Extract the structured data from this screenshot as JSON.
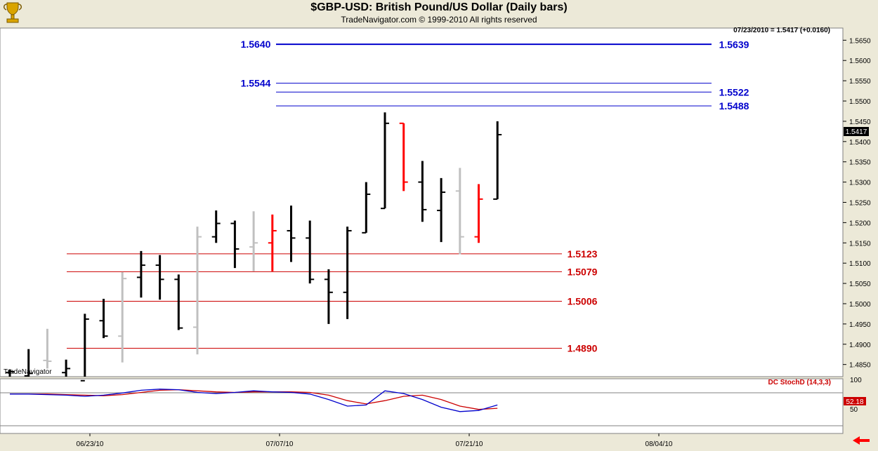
{
  "header": {
    "title": "$GBP-USD:  British Pound/US Dollar  (Daily bars)",
    "subtitle": "TradeNavigator.com © 1999-2010 All rights reserved"
  },
  "price_readout": "07/23/2010 = 1.5417 (+0.0160)",
  "last_price_label": "1.5417",
  "watermark": "TradeNavigator",
  "indicator": {
    "label": "DC StochD (14,3,3)",
    "value_label": "52.18",
    "ticks": [
      "100",
      "50"
    ]
  },
  "colors": {
    "up_bar": "#000000",
    "neutral_bar": "#c0c0c0",
    "down_bar": "#ff0000",
    "resistance": "#0000cc",
    "support": "#cc0000",
    "stoch_k": "#0000cc",
    "stoch_d": "#cc0000",
    "plot_bg": "#ffffff",
    "frame_bg": "#ece9d8",
    "arrow": "#ff0000"
  },
  "chart_data": {
    "type": "ohlc",
    "ylim": [
      1.482,
      1.568
    ],
    "y_ticks": [
      "1.4850",
      "1.4900",
      "1.4950",
      "1.5000",
      "1.5050",
      "1.5100",
      "1.5150",
      "1.5200",
      "1.5250",
      "1.5300",
      "1.5350",
      "1.5400",
      "1.5450",
      "1.5500",
      "1.5550",
      "1.5600",
      "1.5650"
    ],
    "x_ticks": [
      "06/23/10",
      "07/07/10",
      "07/21/10",
      "08/04/10"
    ],
    "bars": [
      {
        "o": 1.483,
        "h": 1.4838,
        "l": 1.482,
        "c": 1.4832,
        "color": "up"
      },
      {
        "o": 1.4822,
        "h": 1.4888,
        "l": 1.481,
        "c": 1.4828,
        "color": "up"
      },
      {
        "o": 1.486,
        "h": 1.4938,
        "l": 1.484,
        "c": 1.4858,
        "color": "neutral"
      },
      {
        "o": 1.483,
        "h": 1.4862,
        "l": 1.4815,
        "c": 1.484,
        "color": "up"
      },
      {
        "o": 1.481,
        "h": 1.4975,
        "l": 1.48,
        "c": 1.4962,
        "color": "up"
      },
      {
        "o": 1.4958,
        "h": 1.5012,
        "l": 1.4915,
        "c": 1.492,
        "color": "up"
      },
      {
        "o": 1.492,
        "h": 1.5078,
        "l": 1.4855,
        "c": 1.5062,
        "color": "neutral"
      },
      {
        "o": 1.5065,
        "h": 1.513,
        "l": 1.5015,
        "c": 1.5095,
        "color": "up"
      },
      {
        "o": 1.5095,
        "h": 1.512,
        "l": 1.501,
        "c": 1.506,
        "color": "up"
      },
      {
        "o": 1.506,
        "h": 1.5072,
        "l": 1.4935,
        "c": 1.494,
        "color": "up"
      },
      {
        "o": 1.4942,
        "h": 1.519,
        "l": 1.4875,
        "c": 1.5165,
        "color": "neutral"
      },
      {
        "o": 1.5165,
        "h": 1.523,
        "l": 1.515,
        "c": 1.5198,
        "color": "up"
      },
      {
        "o": 1.5198,
        "h": 1.5205,
        "l": 1.5088,
        "c": 1.5135,
        "color": "up"
      },
      {
        "o": 1.514,
        "h": 1.5228,
        "l": 1.508,
        "c": 1.515,
        "color": "neutral"
      },
      {
        "o": 1.515,
        "h": 1.522,
        "l": 1.508,
        "c": 1.518,
        "color": "down"
      },
      {
        "o": 1.518,
        "h": 1.5242,
        "l": 1.5103,
        "c": 1.5162,
        "color": "up"
      },
      {
        "o": 1.5162,
        "h": 1.5205,
        "l": 1.505,
        "c": 1.506,
        "color": "up"
      },
      {
        "o": 1.506,
        "h": 1.5085,
        "l": 1.495,
        "c": 1.5028,
        "color": "up"
      },
      {
        "o": 1.5028,
        "h": 1.519,
        "l": 1.4962,
        "c": 1.518,
        "color": "up"
      },
      {
        "o": 1.5175,
        "h": 1.53,
        "l": 1.5175,
        "c": 1.527,
        "color": "up"
      },
      {
        "o": 1.5235,
        "h": 1.5472,
        "l": 1.5235,
        "c": 1.5445,
        "color": "up"
      },
      {
        "o": 1.5445,
        "h": 1.5445,
        "l": 1.5278,
        "c": 1.53,
        "color": "down"
      },
      {
        "o": 1.53,
        "h": 1.5352,
        "l": 1.5202,
        "c": 1.5232,
        "color": "up"
      },
      {
        "o": 1.523,
        "h": 1.531,
        "l": 1.5152,
        "c": 1.5275,
        "color": "up"
      },
      {
        "o": 1.5278,
        "h": 1.5335,
        "l": 1.5122,
        "c": 1.5165,
        "color": "neutral"
      },
      {
        "o": 1.5165,
        "h": 1.5295,
        "l": 1.515,
        "c": 1.5258,
        "color": "down"
      },
      {
        "o": 1.5258,
        "h": 1.545,
        "l": 1.5258,
        "c": 1.5417,
        "color": "up"
      }
    ],
    "levels": [
      {
        "value": 1.564,
        "label": "1.5640",
        "side": "left",
        "color": "resistance"
      },
      {
        "value": 1.5639,
        "label": "1.5639",
        "side": "right",
        "color": "resistance"
      },
      {
        "value": 1.5544,
        "label": "1.5544",
        "side": "left",
        "color": "resistance"
      },
      {
        "value": 1.5522,
        "label": "1.5522",
        "side": "right",
        "color": "resistance"
      },
      {
        "value": 1.5488,
        "label": "1.5488",
        "side": "right",
        "color": "resistance"
      },
      {
        "value": 1.5123,
        "label": "1.5123",
        "side": "right",
        "color": "support"
      },
      {
        "value": 1.5079,
        "label": "1.5079",
        "side": "right",
        "color": "support"
      },
      {
        "value": 1.5006,
        "label": "1.5006",
        "side": "right",
        "color": "support"
      },
      {
        "value": 1.489,
        "label": "1.4890",
        "side": "right",
        "color": "support"
      }
    ],
    "stoch_ylim": [
      0,
      100
    ],
    "stoch_k": [
      72,
      72,
      71,
      70,
      68,
      70,
      74,
      79,
      81,
      80,
      75,
      73,
      75,
      78,
      76,
      75,
      72,
      62,
      50,
      52,
      78,
      73,
      62,
      48,
      40,
      42,
      52
    ],
    "stoch_d": [
      72,
      72,
      72,
      71,
      70,
      69,
      71,
      75,
      79,
      80,
      78,
      76,
      75,
      76,
      76,
      76,
      75,
      70,
      60,
      54,
      60,
      68,
      70,
      62,
      50,
      44,
      46
    ]
  }
}
